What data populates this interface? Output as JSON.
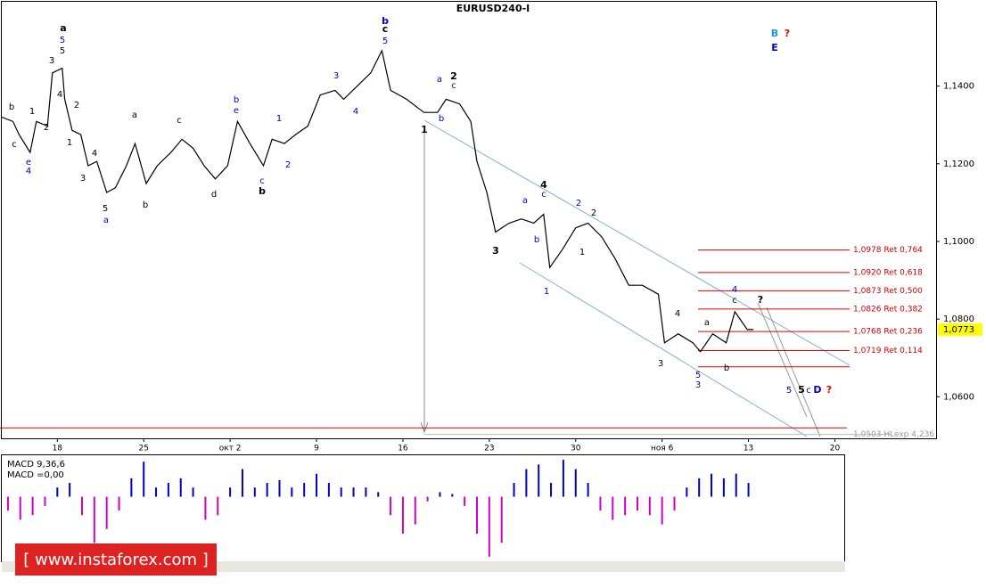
{
  "chart_data": {
    "type": "line",
    "title": "EURUSD240-I",
    "color": "#000000",
    "x": [
      -4.5,
      -3.6,
      -3.1,
      -2.2,
      -1.7,
      -0.8,
      -0.4,
      0.4,
      0.6,
      1.2,
      1.9,
      2.5,
      3.2,
      4.0,
      4.7,
      5.6,
      6.3,
      7.2,
      8.1,
      9.2,
      10.1,
      11.0,
      11.9,
      12.8,
      13.8,
      14.6,
      15.6,
      16.7,
      17.4,
      18.4,
      19.3,
      20.3,
      21.3,
      22.5,
      23.2,
      24.3,
      25.4,
      26.3,
      27.0,
      28.3,
      29.7,
      30.8,
      31.5,
      32.6,
      33.5,
      34.0,
      34.8,
      35.5,
      36.6,
      37.6,
      38.6,
      39.4,
      39.9,
      40.9,
      42.0,
      43.0,
      44.1,
      45.2,
      46.3,
      47.4,
      48.7,
      49.2,
      50.3,
      51.5,
      52.1,
      53.1,
      54.2,
      54.9,
      55.9,
      56.4
    ],
    "values": [
      1.132,
      1.1309,
      1.1275,
      1.1229,
      1.1309,
      1.1297,
      1.1434,
      1.1446,
      1.1366,
      1.1286,
      1.1275,
      1.1195,
      1.1206,
      1.1126,
      1.1138,
      1.1195,
      1.1252,
      1.1149,
      1.1195,
      1.1229,
      1.1263,
      1.124,
      1.1195,
      1.1161,
      1.1195,
      1.1309,
      1.1252,
      1.1195,
      1.1263,
      1.1252,
      1.1275,
      1.1297,
      1.1377,
      1.1389,
      1.1366,
      1.14,
      1.1434,
      1.1491,
      1.1389,
      1.1366,
      1.1332,
      1.1332,
      1.1366,
      1.1354,
      1.1309,
      1.1206,
      1.1126,
      1.1024,
      1.1047,
      1.1058,
      1.1047,
      1.107,
      1.0933,
      1.0978,
      1.1035,
      1.1047,
      1.1012,
      1.0955,
      1.0887,
      1.0887,
      1.0864,
      1.0739,
      1.0762,
      1.0739,
      1.0716,
      1.0762,
      1.0739,
      1.0819,
      1.0773,
      1.0773
    ],
    "xlim": [
      -4.5,
      71.2
    ],
    "xticks": [
      {
        "value": 0,
        "label": "18"
      },
      {
        "value": 7,
        "label": "25"
      },
      {
        "value": 14,
        "label": "окт 2"
      },
      {
        "value": 21,
        "label": "9"
      },
      {
        "value": 28,
        "label": "16"
      },
      {
        "value": 35,
        "label": "23"
      },
      {
        "value": 42,
        "label": "30"
      },
      {
        "value": 49,
        "label": "ноя 6"
      },
      {
        "value": 56,
        "label": "13"
      },
      {
        "value": 63,
        "label": "20"
      }
    ],
    "ylim": [
      1.0493,
      1.1617
    ],
    "yticks": [
      {
        "value": 1.14,
        "label": "1,1400"
      },
      {
        "value": 1.12,
        "label": "1,1200"
      },
      {
        "value": 1.1,
        "label": "1,1000"
      },
      {
        "value": 1.08,
        "label": "1,0800"
      },
      {
        "value": 1.06,
        "label": "1,0600"
      }
    ],
    "last_price": {
      "value": 1.0773,
      "label": "1,0773"
    },
    "levels": [
      {
        "value": 1.0978,
        "label": "1,0978 Ret 0,764"
      },
      {
        "value": 1.092,
        "label": "1,0920 Ret 0,618"
      },
      {
        "value": 1.0873,
        "label": "1,0873 Ret 0,500"
      },
      {
        "value": 1.0826,
        "label": "1,0826 Ret 0,382"
      },
      {
        "value": 1.0768,
        "label": "1,0768 Ret 0,236"
      },
      {
        "value": 1.0719,
        "label": "1,0719 Ret 0,114"
      },
      {
        "value": 1.0503,
        "label": "1,0503 HLexp 4,236"
      }
    ],
    "horizontal_lines": [
      1.052,
      1.0677
    ],
    "wave_labels": [
      "b",
      "c",
      "e",
      "4",
      "1",
      "2",
      "3",
      "a",
      "5",
      "5",
      "4",
      "1",
      "2",
      "3",
      "4",
      "5",
      "a",
      "a",
      "b",
      "c",
      "d",
      "b",
      "e",
      "c",
      "b",
      "1",
      "2",
      "3",
      "4",
      "b",
      "c",
      "5",
      "a",
      "2",
      "c",
      "b",
      "1",
      "3",
      "a",
      "b",
      "4",
      "c",
      "2",
      "2",
      "1",
      "1",
      "3",
      "4",
      "a",
      "4",
      "c",
      "b",
      "5",
      "3",
      "?",
      "5",
      "5",
      "c",
      "D",
      "?",
      "B",
      "?",
      "E"
    ],
    "macd": {
      "title": "MACD 9,36,6",
      "readout": "MACD =0,00",
      "positive_color": "#0000cc",
      "negative_color": "#cc00cc",
      "ylim": [
        -0.007,
        0.0045
      ],
      "x": [
        -4,
        -3,
        -2,
        -1,
        0,
        1,
        2,
        3,
        4,
        5,
        6,
        7,
        8,
        9,
        10,
        11,
        12,
        13,
        14,
        15,
        16,
        17,
        18,
        19,
        20,
        21,
        22,
        23,
        24,
        25,
        26,
        27,
        28,
        29,
        30,
        31,
        32,
        33,
        34,
        35,
        36,
        37,
        38,
        39,
        40,
        41,
        42,
        43,
        44,
        45,
        46,
        47,
        48,
        49,
        50,
        51,
        52,
        53,
        54,
        55,
        56
      ],
      "values": [
        -0.0015,
        -0.0025,
        -0.002,
        -0.001,
        0.001,
        0.0015,
        -0.002,
        -0.005,
        -0.0035,
        -0.0015,
        0.002,
        0.0038,
        0.001,
        0.0015,
        0.002,
        0.001,
        -0.0025,
        -0.002,
        0.001,
        0.003,
        0.001,
        0.0015,
        0.0018,
        0.001,
        0.0015,
        0.0025,
        0.0015,
        0.001,
        0.001,
        0.001,
        0.0005,
        -0.002,
        -0.004,
        -0.003,
        -0.0005,
        0.0005,
        0.0003,
        -0.001,
        -0.004,
        -0.0065,
        -0.005,
        0.0015,
        0.003,
        0.0035,
        0.0015,
        0.004,
        0.003,
        0.0015,
        -0.0015,
        -0.0025,
        -0.002,
        -0.0015,
        -0.002,
        -0.003,
        -0.0015,
        0.001,
        0.002,
        0.0025,
        0.002,
        0.0025,
        0.0015
      ]
    },
    "watermark": "[ www.instaforex.com ]"
  }
}
